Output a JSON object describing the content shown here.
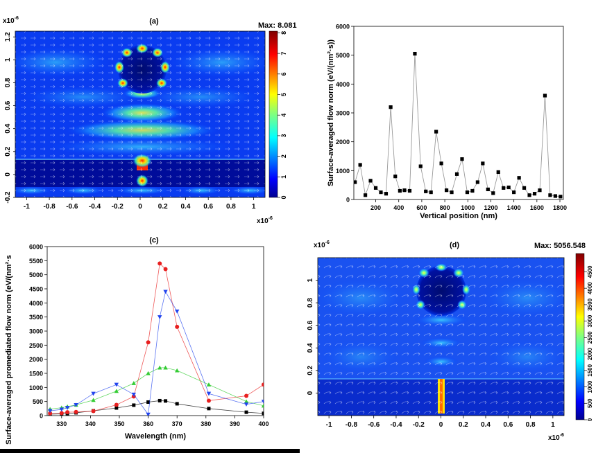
{
  "chart_data": [
    {
      "id": "a",
      "type": "heatmap",
      "title": "(a)",
      "x_exponent_label": "x10",
      "x_exponent_power": "-6",
      "y_exponent_label": "x10",
      "y_exponent_power": "-6",
      "xlim": [
        -1.1,
        1.1
      ],
      "ylim": [
        -0.2,
        1.25
      ],
      "x_ticks": [
        -1,
        -0.8,
        -0.6,
        -0.4,
        -0.2,
        0,
        0.2,
        0.4,
        0.6,
        0.8,
        1
      ],
      "y_ticks": [
        -0.2,
        0,
        0.2,
        0.4,
        0.6,
        0.8,
        1,
        1.2
      ],
      "colorbar": {
        "max_label": "Max: 8.081",
        "min": 0,
        "max": 8.081,
        "ticks": [
          0,
          1,
          2,
          3,
          4,
          5,
          6,
          7,
          8
        ]
      },
      "overlay": "arrow field (white)"
    },
    {
      "id": "b",
      "type": "line",
      "xlabel": "Vertical position (nm)",
      "ylabel": "Surface-averaged flow norm (eV/(nm²·s))",
      "xlim": [
        10,
        1830
      ],
      "ylim": [
        0,
        6000
      ],
      "x_ticks": [
        200,
        400,
        600,
        800,
        1000,
        1200,
        1400,
        1600,
        1800
      ],
      "y_ticks": [
        0,
        1000,
        2000,
        3000,
        4000,
        5000,
        6000
      ],
      "series": [
        {
          "name": "flow",
          "marker": "square",
          "color": "#000000",
          "x": [
            20,
            65,
            110,
            155,
            200,
            245,
            290,
            330,
            370,
            410,
            450,
            495,
            540,
            590,
            635,
            680,
            725,
            770,
            815,
            860,
            905,
            950,
            995,
            1040,
            1085,
            1130,
            1175,
            1220,
            1265,
            1310,
            1355,
            1400,
            1445,
            1490,
            1535,
            1580,
            1625,
            1670,
            1715,
            1760,
            1805
          ],
          "y": [
            600,
            1200,
            150,
            650,
            400,
            250,
            200,
            3200,
            800,
            300,
            320,
            300,
            5050,
            1150,
            280,
            250,
            2350,
            1250,
            320,
            250,
            880,
            1400,
            250,
            300,
            600,
            1250,
            350,
            220,
            950,
            400,
            420,
            250,
            750,
            400,
            150,
            200,
            320,
            3600,
            150,
            120,
            100
          ]
        }
      ]
    },
    {
      "id": "c",
      "type": "line",
      "title": "(c)",
      "xlabel": "Wavelength (nm)",
      "ylabel": "Surface-averaged promediated flow norm (eV/(nm²·s",
      "xlim": [
        325,
        400
      ],
      "ylim": [
        0,
        6000
      ],
      "x_ticks": [
        330,
        340,
        350,
        360,
        370,
        380,
        390,
        400
      ],
      "y_ticks": [
        0,
        500,
        1000,
        1500,
        2000,
        2500,
        3000,
        3500,
        4000,
        4500,
        5000,
        5500,
        6000
      ],
      "series": [
        {
          "name": "black",
          "marker": "square",
          "color": "#000000",
          "x": [
            326,
            330,
            332,
            335,
            341,
            349,
            355,
            360,
            364,
            366,
            370,
            381,
            394,
            400
          ],
          "y": [
            50,
            60,
            70,
            100,
            170,
            270,
            370,
            480,
            530,
            520,
            420,
            250,
            120,
            80
          ]
        },
        {
          "name": "red",
          "marker": "circle",
          "color": "#e82020",
          "x": [
            326,
            330,
            332,
            335,
            341,
            349,
            355,
            360,
            364,
            366,
            370,
            381,
            394,
            400
          ],
          "y": [
            80,
            90,
            120,
            130,
            160,
            380,
            680,
            2600,
            5400,
            5200,
            3150,
            530,
            700,
            1100
          ]
        },
        {
          "name": "green",
          "marker": "triangle-up",
          "color": "#33cc33",
          "x": [
            326,
            330,
            332,
            335,
            341,
            349,
            355,
            360,
            364,
            366,
            370,
            381,
            394,
            400
          ],
          "y": [
            230,
            280,
            320,
            380,
            550,
            870,
            1150,
            1500,
            1700,
            1700,
            1600,
            1100,
            500,
            350
          ]
        },
        {
          "name": "blue",
          "marker": "triangle-down",
          "color": "#2244ee",
          "x": [
            326,
            330,
            332,
            335,
            341,
            349,
            355,
            360,
            364,
            366,
            370,
            381,
            394,
            400
          ],
          "y": [
            170,
            220,
            280,
            380,
            780,
            1100,
            750,
            40,
            3500,
            4400,
            3700,
            780,
            400,
            500
          ]
        }
      ]
    },
    {
      "id": "d",
      "type": "heatmap",
      "title": "(d)",
      "x_exponent_label": "x10",
      "x_exponent_power": "-6",
      "y_exponent_label": "x10",
      "y_exponent_power": "-6",
      "xlim": [
        -1.1,
        1.1
      ],
      "ylim": [
        -0.2,
        1.2
      ],
      "x_ticks": [
        -1,
        -0.8,
        -0.6,
        -0.4,
        -0.2,
        0,
        0.2,
        0.4,
        0.6,
        0.8,
        1
      ],
      "y_ticks": [
        0,
        0.2,
        0.4,
        0.6,
        0.8,
        1
      ],
      "colorbar": {
        "max_label": "Max: 5056.548",
        "min": 0,
        "max": 5056.548,
        "ticks": [
          0,
          500,
          1000,
          1500,
          2000,
          2500,
          3000,
          3500,
          4000,
          4500
        ]
      },
      "overlay": "arrow field (white)"
    }
  ]
}
